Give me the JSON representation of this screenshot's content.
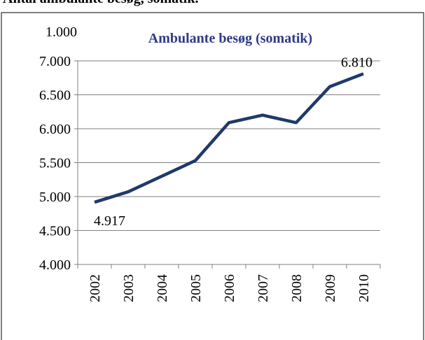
{
  "heading": "Antal ambulante besøg, somatik.",
  "chart_data": {
    "type": "line",
    "title": "Ambulante besøg (somatik)",
    "unit_label": "1.000",
    "categories": [
      "2002",
      "2003",
      "2004",
      "2005",
      "2006",
      "2007",
      "2008",
      "2009",
      "2010"
    ],
    "values": [
      4917,
      5070,
      5300,
      5530,
      6090,
      6200,
      6090,
      6620,
      6810
    ],
    "value_labels": [
      "4.917",
      null,
      null,
      null,
      null,
      null,
      null,
      null,
      "6.810"
    ],
    "color": "#1f3a6b",
    "ylim": [
      4000,
      7000
    ],
    "yticks": [
      {
        "value": 4000,
        "label": "4.000"
      },
      {
        "value": 4500,
        "label": "4.500"
      },
      {
        "value": 5000,
        "label": "5.000"
      },
      {
        "value": 5500,
        "label": "5.500"
      },
      {
        "value": 6000,
        "label": "6.000"
      },
      {
        "value": 6500,
        "label": "6.500"
      },
      {
        "value": 7000,
        "label": "7.000"
      }
    ],
    "grid": true
  }
}
